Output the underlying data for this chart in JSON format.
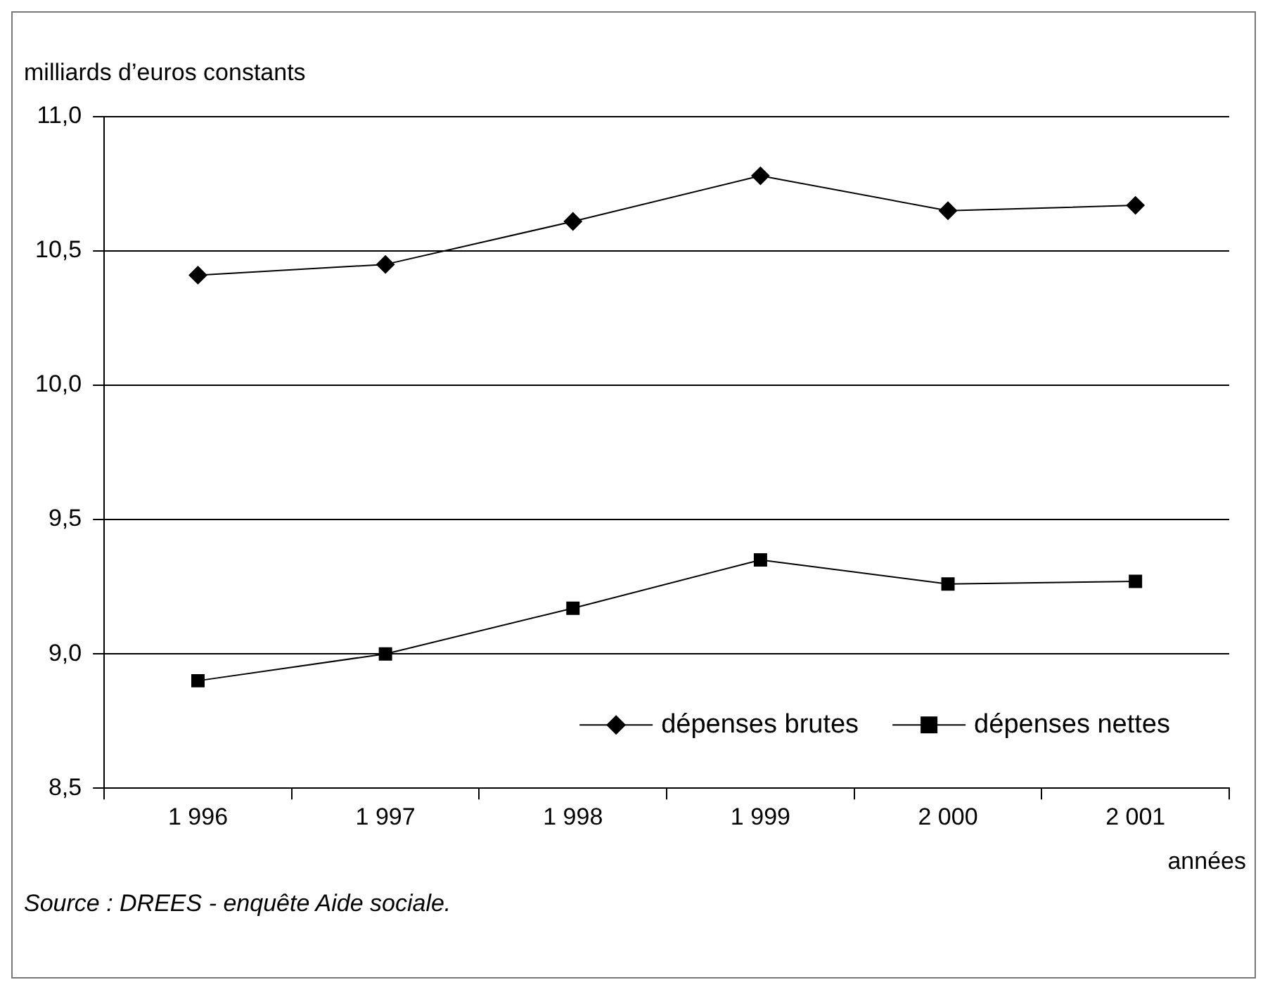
{
  "chart_data": {
    "type": "line",
    "ylabel": "milliards d’euros constants",
    "xlabel": "années",
    "categories": [
      "1 996",
      "1 997",
      "1 998",
      "1 999",
      "2 000",
      "2 001"
    ],
    "series": [
      {
        "name": "dépenses brutes",
        "color": "#000000",
        "marker": "diamond",
        "values": [
          10.41,
          10.45,
          10.61,
          10.78,
          10.65,
          10.67
        ]
      },
      {
        "name": "dépenses nettes",
        "color": "#000000",
        "marker": "square",
        "values": [
          8.9,
          9.0,
          9.17,
          9.35,
          9.26,
          9.27
        ]
      }
    ],
    "ylim": [
      8.5,
      11.0
    ],
    "yticks": [
      {
        "value": 8.5,
        "label": "8,5"
      },
      {
        "value": 9.0,
        "label": "9,0"
      },
      {
        "value": 9.5,
        "label": "9,5"
      },
      {
        "value": 10.0,
        "label": "10,0"
      },
      {
        "value": 10.5,
        "label": "10,5"
      },
      {
        "value": 11.0,
        "label": "11,0"
      }
    ],
    "grid": "y",
    "legend": "bottom right",
    "annotations": [
      "Source : DREES - enquête Aide sociale."
    ]
  }
}
